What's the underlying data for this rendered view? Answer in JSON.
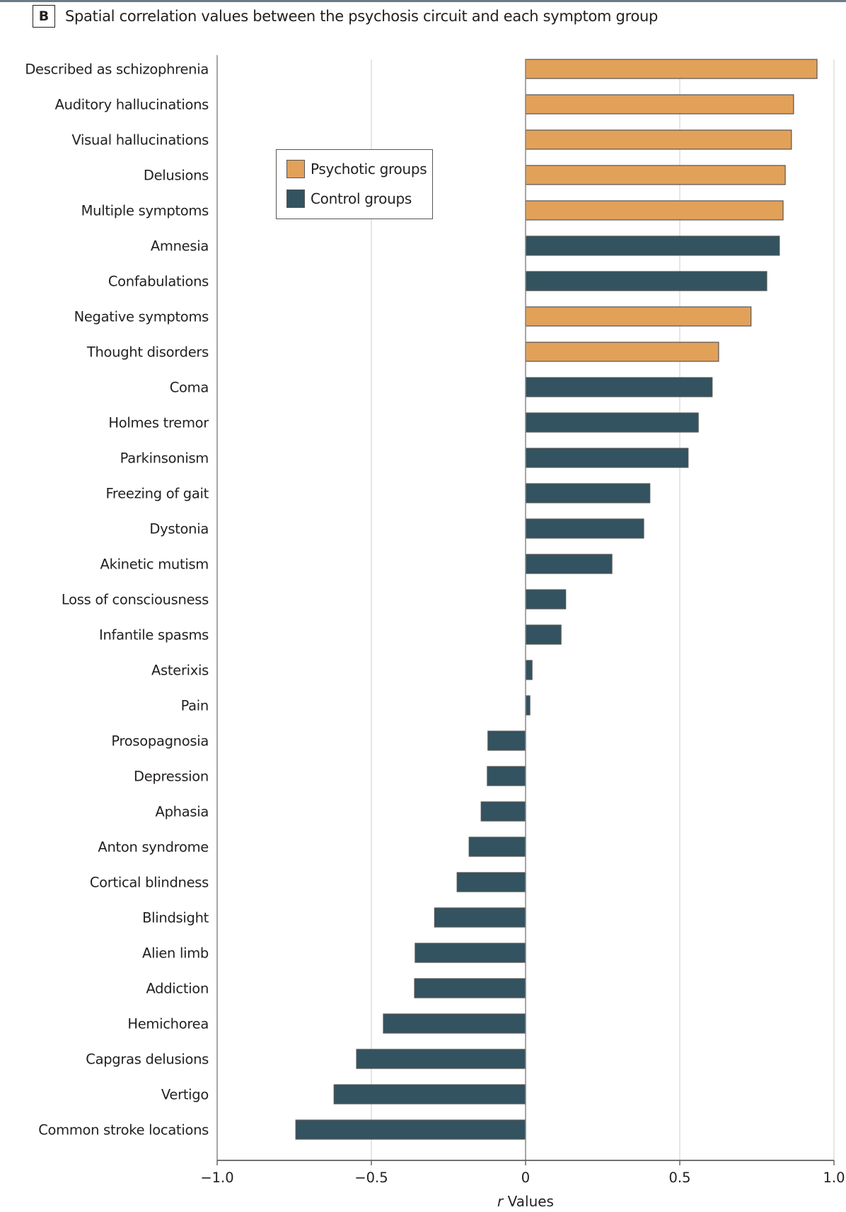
{
  "figure": {
    "panel_letter": "B",
    "title": "Spatial correlation values between the psychosis circuit and each symptom group"
  },
  "legend": {
    "items": [
      {
        "label": "Psychotic groups",
        "color": "#E2A159"
      },
      {
        "label": "Control groups",
        "color": "#32535F"
      }
    ]
  },
  "colors": {
    "psychotic": "#E2A159",
    "control": "#32535F",
    "bar_outline": "#555555",
    "gridline": "#dddddd",
    "axis": "#555555"
  },
  "chart_data": {
    "type": "bar",
    "orientation": "horizontal",
    "title": "Spatial correlation values between the psychosis circuit and each symptom group",
    "xlabel_italic": "r",
    "xlabel_rest": " Values",
    "xlabel": "r Values",
    "ylabel": "",
    "xlim": [
      -1.0,
      1.0
    ],
    "xticks": [
      -1.0,
      -0.5,
      0,
      0.5,
      1.0
    ],
    "xtick_labels": [
      "−1.0",
      "−0.5",
      "0",
      "0.5",
      "1.0"
    ],
    "grid": "vertical",
    "legend_position": "upper-left-inside",
    "categories": [
      "Described as schizophrenia",
      "Auditory hallucinations",
      "Visual hallucinations",
      "Delusions",
      "Multiple symptoms",
      "Amnesia",
      "Confabulations",
      "Negative symptoms",
      "Thought disorders",
      "Coma",
      "Holmes tremor",
      "Parkinsonism",
      "Freezing of gait",
      "Dystonia",
      "Akinetic mutism",
      "Loss of consciousness",
      "Infantile spasms",
      "Asterixis",
      "Pain",
      "Prosopagnosia",
      "Depression",
      "Aphasia",
      "Anton syndrome",
      "Cortical blindness",
      "Blindsight",
      "Alien limb",
      "Addiction",
      "Hemichorea",
      "Capgras delusions",
      "Vertigo",
      "Common stroke locations"
    ],
    "values": [
      0.945,
      0.869,
      0.862,
      0.842,
      0.835,
      0.823,
      0.782,
      0.731,
      0.626,
      0.605,
      0.56,
      0.527,
      0.403,
      0.383,
      0.28,
      0.13,
      0.115,
      0.021,
      0.014,
      -0.122,
      -0.124,
      -0.144,
      -0.183,
      -0.222,
      -0.295,
      -0.358,
      -0.36,
      -0.461,
      -0.548,
      -0.621,
      -0.745
    ],
    "groups": [
      "Psychotic groups",
      "Psychotic groups",
      "Psychotic groups",
      "Psychotic groups",
      "Psychotic groups",
      "Control groups",
      "Control groups",
      "Psychotic groups",
      "Psychotic groups",
      "Control groups",
      "Control groups",
      "Control groups",
      "Control groups",
      "Control groups",
      "Control groups",
      "Control groups",
      "Control groups",
      "Control groups",
      "Control groups",
      "Control groups",
      "Control groups",
      "Control groups",
      "Control groups",
      "Control groups",
      "Control groups",
      "Control groups",
      "Control groups",
      "Control groups",
      "Control groups",
      "Control groups",
      "Control groups"
    ]
  }
}
